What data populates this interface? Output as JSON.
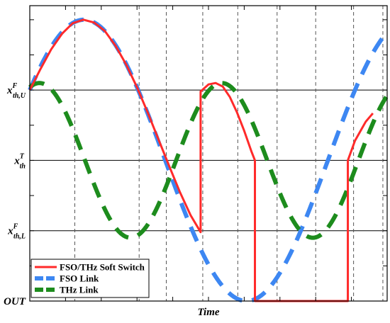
{
  "chart_data": {
    "type": "line",
    "xlabel": "Time",
    "ylabel": "",
    "xlim": [
      0,
      10
    ],
    "ylim": [
      0,
      4.2
    ],
    "y_ticks": [
      {
        "value": 0,
        "base": "OUT",
        "sup": "",
        "sub": ""
      },
      {
        "value": 1,
        "base": "x",
        "sup": "F",
        "sub": "th,L"
      },
      {
        "value": 2,
        "base": "x",
        "sup": "T",
        "sub": "th"
      },
      {
        "value": 3,
        "base": "x",
        "sup": "F",
        "sub": "th,U"
      }
    ],
    "threshold_lines": [
      1,
      2,
      3
    ],
    "vertical_dashed_x": [
      1.26,
      3.06,
      3.82,
      4.84,
      5.82,
      6.92,
      8.0,
      9.06,
      9.88
    ],
    "legend": {
      "position": "bottom-left",
      "entries": [
        {
          "label": "FSO/THz Soft Switch",
          "color": "#ff2a2a",
          "style": "solid"
        },
        {
          "label": "FSO Link",
          "color": "#3d87f2",
          "style": "dashed"
        },
        {
          "label": "THz Link",
          "color": "#1d8c1d",
          "style": "dashed"
        }
      ]
    },
    "series": [
      {
        "name": "FSO Link",
        "color": "#3d87f2",
        "style": "dashed",
        "function": "sine",
        "params": {
          "center": 2.0,
          "amplitude": 2.0,
          "period": 9.1,
          "phase_x": 0.0,
          "phase_offset": 0.25
        }
      },
      {
        "name": "THz Link",
        "color": "#1d8c1d",
        "style": "dashed",
        "function": "sine",
        "params": {
          "center": 2.0,
          "amplitude": 1.1,
          "period": 5.1,
          "peak_x": 0.27
        }
      },
      {
        "name": "FSO/THz Soft Switch",
        "color": "#ff2a2a",
        "style": "solid",
        "points": [
          [
            0.0,
            3.0
          ],
          [
            0.3,
            3.3
          ],
          [
            0.6,
            3.58
          ],
          [
            0.9,
            3.8
          ],
          [
            1.2,
            3.95
          ],
          [
            1.5,
            4.0
          ],
          [
            1.8,
            3.96
          ],
          [
            2.1,
            3.84
          ],
          [
            2.4,
            3.63
          ],
          [
            2.7,
            3.36
          ],
          [
            3.0,
            3.04
          ],
          [
            3.3,
            2.68
          ],
          [
            3.6,
            2.3
          ],
          [
            3.9,
            1.92
          ],
          [
            4.2,
            1.55
          ],
          [
            4.5,
            1.22
          ],
          [
            4.78,
            0.98
          ],
          [
            4.78,
            2.98
          ],
          [
            5.0,
            3.08
          ],
          [
            5.2,
            3.1
          ],
          [
            5.4,
            3.05
          ],
          [
            5.6,
            2.9
          ],
          [
            5.8,
            2.68
          ],
          [
            6.0,
            2.42
          ],
          [
            6.2,
            2.13
          ],
          [
            6.3,
            2.0
          ],
          [
            6.3,
            0.0
          ],
          [
            8.9,
            0.0
          ],
          [
            8.9,
            2.0
          ],
          [
            9.1,
            2.28
          ],
          [
            9.4,
            2.55
          ],
          [
            9.6,
            2.67
          ]
        ]
      }
    ]
  }
}
